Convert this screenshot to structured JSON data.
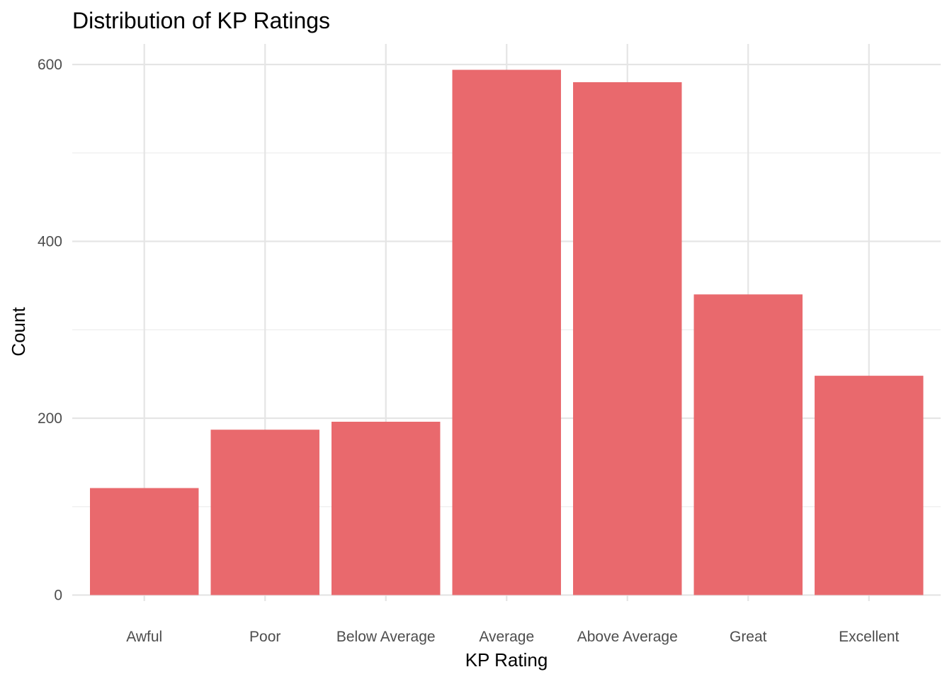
{
  "chart_data": {
    "type": "bar",
    "title": "Distribution of KP Ratings",
    "xlabel": "KP Rating",
    "ylabel": "Count",
    "categories": [
      "Awful",
      "Poor",
      "Below Average",
      "Average",
      "Above Average",
      "Great",
      "Excellent"
    ],
    "values": [
      121,
      187,
      196,
      594,
      580,
      340,
      248
    ],
    "ylim": [
      0,
      600
    ],
    "yticks": [
      0,
      200,
      400,
      600
    ],
    "ytick_labels": [
      "0",
      "200",
      "400",
      "600"
    ],
    "grid": true,
    "bar_color": "#e9696d"
  }
}
